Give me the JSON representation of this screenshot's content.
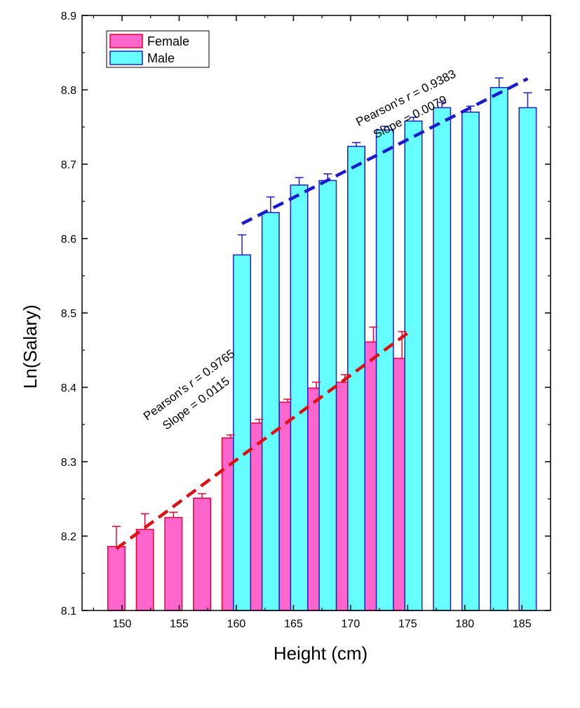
{
  "chart_data": {
    "type": "bar",
    "title": "",
    "xlabel": "Height (cm)",
    "ylabel": "Ln(Salary)",
    "xlim": [
      146.5,
      187.5
    ],
    "ylim": [
      8.1,
      8.9
    ],
    "xticks": [
      150,
      155,
      160,
      165,
      170,
      175,
      180,
      185
    ],
    "yticks": [
      8.1,
      8.2,
      8.3,
      8.4,
      8.5,
      8.6,
      8.7,
      8.8,
      8.9
    ],
    "grid": false,
    "legend_position": "top-left",
    "series": [
      {
        "name": "Female",
        "color": "#ff66cc",
        "edge_color": "#e8003c",
        "x": [
          149.5,
          152,
          154.5,
          157,
          159.5,
          162,
          164.5,
          167,
          169.5,
          172,
          174.5
        ],
        "values": [
          8.186,
          8.209,
          8.225,
          8.251,
          8.332,
          8.352,
          8.38,
          8.399,
          8.407,
          8.461,
          8.439
        ],
        "errors": [
          0.027,
          0.021,
          0.007,
          0.006,
          0.004,
          0.005,
          0.004,
          0.008,
          0.01,
          0.02,
          0.036
        ]
      },
      {
        "name": "Male",
        "color": "#66ffff",
        "edge_color": "#1f1fc8",
        "x": [
          160.5,
          163,
          165.5,
          168,
          170.5,
          173,
          175.5,
          178,
          180.5,
          183,
          185.5
        ],
        "values": [
          8.578,
          8.635,
          8.672,
          8.678,
          8.724,
          8.746,
          8.758,
          8.776,
          8.77,
          8.803,
          8.776
        ],
        "errors": [
          0.027,
          0.021,
          0.01,
          0.009,
          0.005,
          0.005,
          0.005,
          0.007,
          0.008,
          0.013,
          0.02
        ]
      }
    ],
    "fits": [
      {
        "series": "Female",
        "color": "#dd1111",
        "x_start": 149.5,
        "x_end": 175,
        "y_start": 8.183,
        "y_end": 8.473
      },
      {
        "series": "Male",
        "color": "#1a1ad0",
        "x_start": 160.5,
        "x_end": 185.5,
        "y_start": 8.62,
        "y_end": 8.815
      }
    ],
    "annotations": [
      {
        "series": "Female",
        "pearson_prefix": "Pearson's ",
        "pearson_r": "r",
        "pearson_value": " = 0.9765",
        "slope": "Slope = 0.0115",
        "x": 152.2,
        "y": 8.355
      },
      {
        "series": "Male",
        "pearson_prefix": "Pearson's ",
        "pearson_r": "r",
        "pearson_value": " = 0.9383",
        "slope": "Slope = 0.0079",
        "x": 170.7,
        "y": 8.751
      }
    ]
  }
}
